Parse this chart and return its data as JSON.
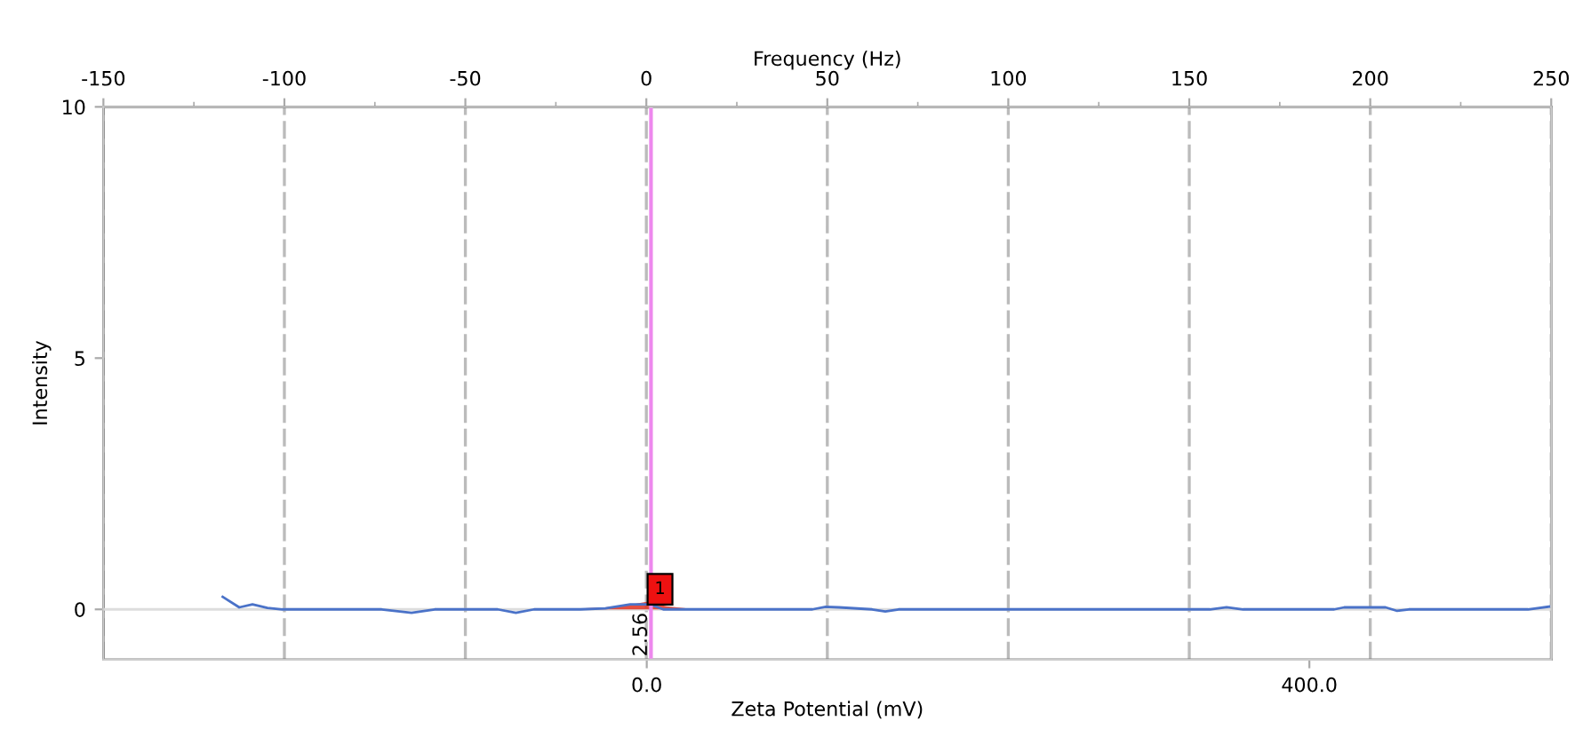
{
  "chart_data": {
    "type": "line",
    "xlabel": "Zeta Potential (mV)",
    "x2label": "Frequency (Hz)",
    "ylabel": "Intensity",
    "xlim": [
      -328,
      546
    ],
    "xticks": [
      {
        "value": 0,
        "label": "0.0"
      },
      {
        "value": 400,
        "label": "400.0"
      }
    ],
    "x2lim": [
      -150,
      250
    ],
    "x2ticks": [
      -150,
      {
        "value": -125,
        "label": null
      },
      -100,
      {
        "value": -75,
        "label": null
      },
      -50,
      {
        "value": -25,
        "label": null
      },
      0,
      {
        "value": 25,
        "label": null
      },
      50,
      {
        "value": 75,
        "label": null
      },
      100,
      {
        "value": 125,
        "label": null
      },
      150,
      {
        "value": 175,
        "label": null
      },
      200,
      {
        "value": 225,
        "label": null
      },
      250
    ],
    "ylim": [
      -1,
      10
    ],
    "yticks": [
      0,
      5,
      10
    ],
    "grid": "x",
    "series": [
      {
        "type": "area",
        "color": "#e03020",
        "x": [
          -55,
          -40,
          -25,
          -12,
          -4,
          0,
          4,
          12,
          25,
          42
        ],
        "values": [
          0,
          0.02,
          0.04,
          0.08,
          0.13,
          0.15,
          0.12,
          0.06,
          0.02,
          0
        ]
      },
      {
        "color": "#4a72c8",
        "x": [
          -256,
          -246,
          -238,
          -229,
          -220,
          -160,
          -142,
          -128,
          -90,
          -79,
          -68,
          -40,
          -25,
          -10,
          2,
          10,
          30,
          100,
          108,
          116,
          136,
          144,
          152,
          340,
          350,
          360,
          415,
          421,
          446,
          453,
          460,
          525,
          532,
          546
        ],
        "values": [
          0.25,
          0.04,
          0.1,
          0.03,
          0,
          0,
          -0.07,
          0,
          0,
          -0.07,
          0,
          0,
          0.02,
          0.1,
          0.1,
          0,
          0,
          0,
          0.05,
          0.04,
          0,
          -0.04,
          0,
          0,
          0.04,
          0,
          0,
          0.04,
          0.04,
          -0.03,
          0,
          0,
          0,
          0.06
        ]
      }
    ],
    "ref_lines": [
      {
        "axis": "x",
        "value": 2.56,
        "label": "2.56",
        "color": "#ee88ee"
      }
    ],
    "annotations": [
      {
        "text": "1",
        "x": 8,
        "y": 0.4
      }
    ]
  }
}
